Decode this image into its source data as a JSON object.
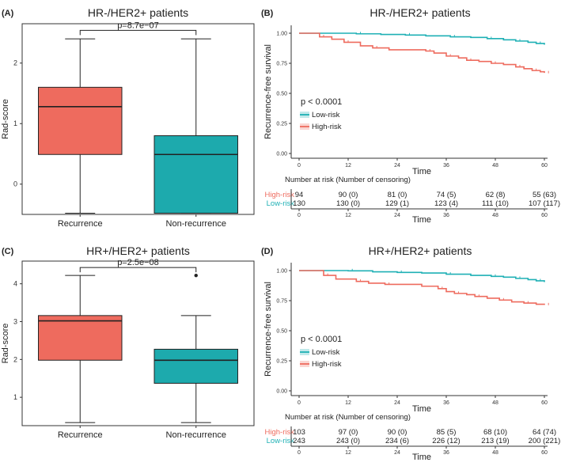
{
  "colors": {
    "recurrence": "#ee6b5e",
    "nonrecurrence": "#1daaad",
    "low_risk": "#1fb0b5",
    "high_risk": "#ee6b5e"
  },
  "chart_data": [
    {
      "panel": "(A)",
      "type": "box",
      "title": "HR-/HER2+ patients",
      "ylabel": "Rad-score",
      "ylim": [
        -0.5,
        2.65
      ],
      "yticks": [
        0,
        1,
        2
      ],
      "categories": [
        "Recurrence",
        "Non-recurrence"
      ],
      "boxes": [
        {
          "name": "Recurrence",
          "min": -0.48,
          "q1": 0.49,
          "median": 1.28,
          "q3": 1.6,
          "max": 2.4,
          "outliers": []
        },
        {
          "name": "Non-recurrence",
          "min": -0.48,
          "q1": -0.48,
          "median": 0.49,
          "q3": 0.8,
          "max": 2.4,
          "outliers": []
        }
      ],
      "annotation": "p=8.7e−07",
      "bracket_y": 2.54
    },
    {
      "panel": "(B)",
      "type": "line",
      "title": "HR-/HER2+ patients",
      "ylabel": "Recurrence-free survival",
      "xlabel": "Time",
      "xlim": [
        0,
        60
      ],
      "ylim": [
        0,
        1
      ],
      "xticks": [
        0,
        12,
        24,
        36,
        48,
        60
      ],
      "yticks": [
        "0.00",
        "0.25",
        "0.50",
        "0.75",
        "1.00"
      ],
      "pvalue": "p < 0.0001",
      "legend": [
        "Low-risk",
        "High-risk"
      ],
      "series": [
        {
          "name": "Low-risk",
          "points": [
            [
              0,
              1
            ],
            [
              14,
              0.995
            ],
            [
              20,
              0.99
            ],
            [
              26,
              0.985
            ],
            [
              31,
              0.978
            ],
            [
              37,
              0.97
            ],
            [
              42,
              0.965
            ],
            [
              46,
              0.955
            ],
            [
              50,
              0.945
            ],
            [
              53,
              0.935
            ],
            [
              56,
              0.925
            ],
            [
              58,
              0.915
            ],
            [
              60,
              0.905
            ]
          ]
        },
        {
          "name": "High-risk",
          "points": [
            [
              0,
              1
            ],
            [
              5,
              0.97
            ],
            [
              8,
              0.95
            ],
            [
              11,
              0.925
            ],
            [
              15,
              0.895
            ],
            [
              18,
              0.878
            ],
            [
              22,
              0.862
            ],
            [
              31,
              0.852
            ],
            [
              33,
              0.835
            ],
            [
              36,
              0.81
            ],
            [
              39,
              0.795
            ],
            [
              41,
              0.775
            ],
            [
              44,
              0.765
            ],
            [
              47,
              0.75
            ],
            [
              50,
              0.74
            ],
            [
              53,
              0.72
            ],
            [
              55,
              0.705
            ],
            [
              57,
              0.69
            ],
            [
              59,
              0.68
            ],
            [
              60,
              0.67
            ]
          ]
        }
      ],
      "risk_table": {
        "title": "Number at risk (Number of censoring)",
        "xlabel": "Time",
        "rows": [
          {
            "label": "High-risk",
            "values": [
              "94",
              "90 (0)",
              "81 (0)",
              "74 (5)",
              "62 (8)",
              "55 (63)"
            ]
          },
          {
            "label": "Low-risk",
            "values": [
              "130",
              "130 (0)",
              "129 (1)",
              "123 (4)",
              "111 (10)",
              "107 (117)"
            ]
          }
        ]
      }
    },
    {
      "panel": "(C)",
      "type": "box",
      "title": "HR+/HER2+ patients",
      "ylabel": "Rad-score",
      "ylim": [
        0.25,
        4.6
      ],
      "yticks": [
        1,
        2,
        3,
        4
      ],
      "categories": [
        "Recurrence",
        "Non-recurrence"
      ],
      "boxes": [
        {
          "name": "Recurrence",
          "min": 0.33,
          "q1": 1.98,
          "median": 3.02,
          "q3": 3.16,
          "max": 4.22,
          "outliers": []
        },
        {
          "name": "Non-recurrence",
          "min": 0.33,
          "q1": 1.37,
          "median": 1.98,
          "q3": 2.27,
          "max": 3.16,
          "outliers": [
            4.22
          ]
        }
      ],
      "annotation": "p=2.5e−08",
      "bracket_y": 4.43
    },
    {
      "panel": "(D)",
      "type": "line",
      "title": "HR+/HER2+ patients",
      "ylabel": "Recurrence-free survival",
      "xlabel": "Time",
      "xlim": [
        0,
        60
      ],
      "ylim": [
        0,
        1
      ],
      "xticks": [
        0,
        12,
        24,
        36,
        48,
        60
      ],
      "yticks": [
        "0.00",
        "0.25",
        "0.50",
        "0.75",
        "1.00"
      ],
      "pvalue": "p < 0.0001",
      "legend": [
        "Low-risk",
        "High-risk"
      ],
      "series": [
        {
          "name": "Low-risk",
          "points": [
            [
              0,
              1
            ],
            [
              12,
              0.998
            ],
            [
              18,
              0.99
            ],
            [
              24,
              0.985
            ],
            [
              30,
              0.98
            ],
            [
              36,
              0.97
            ],
            [
              42,
              0.96
            ],
            [
              47,
              0.952
            ],
            [
              50,
              0.945
            ],
            [
              53,
              0.935
            ],
            [
              56,
              0.925
            ],
            [
              58,
              0.915
            ],
            [
              60,
              0.905
            ]
          ]
        },
        {
          "name": "High-risk",
          "points": [
            [
              0,
              1
            ],
            [
              6,
              0.96
            ],
            [
              9,
              0.93
            ],
            [
              14,
              0.91
            ],
            [
              17,
              0.895
            ],
            [
              21,
              0.885
            ],
            [
              30,
              0.87
            ],
            [
              34,
              0.85
            ],
            [
              36,
              0.825
            ],
            [
              38,
              0.81
            ],
            [
              41,
              0.8
            ],
            [
              43,
              0.785
            ],
            [
              46,
              0.77
            ],
            [
              49,
              0.755
            ],
            [
              52,
              0.74
            ],
            [
              55,
              0.73
            ],
            [
              58,
              0.72
            ],
            [
              60,
              0.715
            ]
          ]
        }
      ],
      "risk_table": {
        "title": "Number at risk (Number of censoring)",
        "xlabel": "Time",
        "rows": [
          {
            "label": "High-risk",
            "values": [
              "103",
              "97 (0)",
              "90 (0)",
              "85 (5)",
              "68 (10)",
              "64 (74)"
            ]
          },
          {
            "label": "Low-risk",
            "values": [
              "243",
              "243 (0)",
              "234 (6)",
              "226 (12)",
              "213 (19)",
              "200 (221)"
            ]
          }
        ]
      }
    }
  ]
}
